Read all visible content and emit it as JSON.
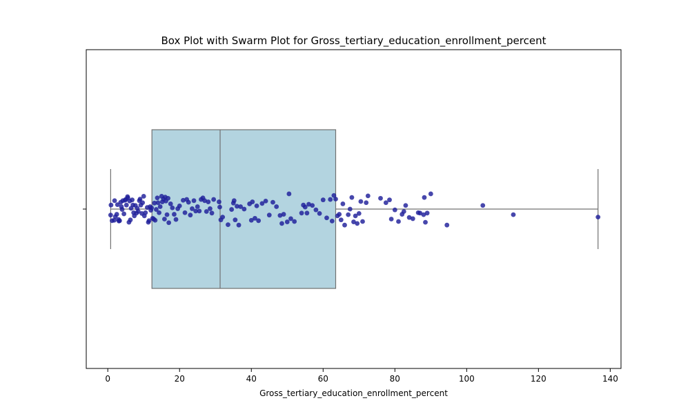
{
  "chart_data": {
    "type": "box",
    "title": "Box Plot with Swarm Plot for Gross_tertiary_education_enrollment_percent",
    "xlabel": "Gross_tertiary_education_enrollment_percent",
    "ylabel": "",
    "xlim": [
      -6.0,
      143.0
    ],
    "xticks": [
      0,
      20,
      40,
      60,
      80,
      100,
      120,
      140
    ],
    "grid": false,
    "box": {
      "whisker_low": 0.8,
      "q1": 12.3,
      "median": 31.3,
      "q3": 63.5,
      "whisker_high": 136.6
    },
    "style": {
      "box_fill": "#b3d4e0",
      "box_edge": "#707070",
      "point_color": "#1f1f9a"
    },
    "points": [
      {
        "x": 0.8,
        "y": -0.15
      },
      {
        "x": 0.9,
        "y": 0.1
      },
      {
        "x": 1.2,
        "y": -0.29
      },
      {
        "x": 1.8,
        "y": -0.28
      },
      {
        "x": 1.9,
        "y": 0.21
      },
      {
        "x": 2.1,
        "y": -0.19
      },
      {
        "x": 2.5,
        "y": -0.13
      },
      {
        "x": 2.7,
        "y": 0.11
      },
      {
        "x": 3.0,
        "y": -0.26
      },
      {
        "x": 3.1,
        "y": -0.3
      },
      {
        "x": 3.3,
        "y": -0.29
      },
      {
        "x": 3.6,
        "y": 0.17
      },
      {
        "x": 3.8,
        "y": 0.06
      },
      {
        "x": 4.0,
        "y": -0.01
      },
      {
        "x": 4.2,
        "y": 0.21
      },
      {
        "x": 4.5,
        "y": -0.12
      },
      {
        "x": 4.8,
        "y": 0.22
      },
      {
        "x": 5.0,
        "y": 0.24
      },
      {
        "x": 5.2,
        "y": 0.1
      },
      {
        "x": 5.5,
        "y": 0.31
      },
      {
        "x": 5.6,
        "y": 0.28
      },
      {
        "x": 5.9,
        "y": -0.33
      },
      {
        "x": 6.1,
        "y": 0.2
      },
      {
        "x": 6.3,
        "y": -0.27
      },
      {
        "x": 6.5,
        "y": 0.02
      },
      {
        "x": 6.8,
        "y": 0.23
      },
      {
        "x": 7.0,
        "y": 0.1
      },
      {
        "x": 7.2,
        "y": -0.09
      },
      {
        "x": 7.4,
        "y": -0.17
      },
      {
        "x": 7.7,
        "y": 0.09
      },
      {
        "x": 8.0,
        "y": -0.1
      },
      {
        "x": 8.2,
        "y": 0.02
      },
      {
        "x": 8.5,
        "y": -0.06
      },
      {
        "x": 8.8,
        "y": 0.21
      },
      {
        "x": 9.0,
        "y": 0.25
      },
      {
        "x": 9.2,
        "y": 0.1
      },
      {
        "x": 9.5,
        "y": -0.11
      },
      {
        "x": 9.7,
        "y": 0.16
      },
      {
        "x": 10.0,
        "y": 0.32
      },
      {
        "x": 10.2,
        "y": -0.17
      },
      {
        "x": 10.5,
        "y": -0.09
      },
      {
        "x": 11.0,
        "y": 0.04
      },
      {
        "x": 11.3,
        "y": -0.33
      },
      {
        "x": 11.5,
        "y": -0.29
      },
      {
        "x": 11.8,
        "y": 0.06
      },
      {
        "x": 12.0,
        "y": -0.03
      },
      {
        "x": 12.2,
        "y": 0.03
      },
      {
        "x": 12.5,
        "y": -0.23
      },
      {
        "x": 12.8,
        "y": -0.25
      },
      {
        "x": 13.0,
        "y": 0.15
      },
      {
        "x": 13.2,
        "y": -0.28
      },
      {
        "x": 13.5,
        "y": -0.01
      },
      {
        "x": 13.8,
        "y": 0.28
      },
      {
        "x": 14.0,
        "y": 0.16
      },
      {
        "x": 14.3,
        "y": -0.09
      },
      {
        "x": 14.6,
        "y": 0.06
      },
      {
        "x": 15.0,
        "y": 0.32
      },
      {
        "x": 15.2,
        "y": 0.18
      },
      {
        "x": 15.5,
        "y": 0.25
      },
      {
        "x": 15.8,
        "y": -0.25
      },
      {
        "x": 16.0,
        "y": 0.3
      },
      {
        "x": 16.2,
        "y": 0.2
      },
      {
        "x": 16.5,
        "y": -0.14
      },
      {
        "x": 16.8,
        "y": 0.27
      },
      {
        "x": 17.0,
        "y": -0.34
      },
      {
        "x": 17.5,
        "y": 0.13
      },
      {
        "x": 18.0,
        "y": 0.03
      },
      {
        "x": 18.5,
        "y": -0.13
      },
      {
        "x": 19.0,
        "y": -0.26
      },
      {
        "x": 19.5,
        "y": 0.01
      },
      {
        "x": 20.0,
        "y": 0.08
      },
      {
        "x": 21.0,
        "y": 0.22
      },
      {
        "x": 21.5,
        "y": -0.09
      },
      {
        "x": 22.0,
        "y": 0.24
      },
      {
        "x": 22.5,
        "y": 0.17
      },
      {
        "x": 23.0,
        "y": -0.15
      },
      {
        "x": 23.5,
        "y": 0.01
      },
      {
        "x": 24.0,
        "y": 0.21
      },
      {
        "x": 24.5,
        "y": -0.05
      },
      {
        "x": 25.0,
        "y": 0.06
      },
      {
        "x": 25.5,
        "y": -0.05
      },
      {
        "x": 26.0,
        "y": 0.24
      },
      {
        "x": 26.5,
        "y": 0.28
      },
      {
        "x": 27.0,
        "y": 0.21
      },
      {
        "x": 27.5,
        "y": -0.06
      },
      {
        "x": 28.0,
        "y": 0.18
      },
      {
        "x": 28.5,
        "y": 0.01
      },
      {
        "x": 29.0,
        "y": -0.1
      },
      {
        "x": 29.5,
        "y": 0.24
      },
      {
        "x": 31.0,
        "y": 0.18
      },
      {
        "x": 31.2,
        "y": 0.05
      },
      {
        "x": 31.5,
        "y": -0.27
      },
      {
        "x": 32.0,
        "y": -0.2
      },
      {
        "x": 33.5,
        "y": -0.39
      },
      {
        "x": 34.5,
        "y": -0.01
      },
      {
        "x": 35.0,
        "y": 0.15
      },
      {
        "x": 35.2,
        "y": 0.21
      },
      {
        "x": 35.5,
        "y": -0.27
      },
      {
        "x": 36.0,
        "y": 0.07
      },
      {
        "x": 36.5,
        "y": -0.4
      },
      {
        "x": 37.0,
        "y": 0.06
      },
      {
        "x": 38.0,
        "y": 0.0
      },
      {
        "x": 39.5,
        "y": 0.13
      },
      {
        "x": 40.0,
        "y": -0.28
      },
      {
        "x": 40.3,
        "y": 0.18
      },
      {
        "x": 41.0,
        "y": -0.23
      },
      {
        "x": 41.5,
        "y": 0.08
      },
      {
        "x": 42.0,
        "y": -0.29
      },
      {
        "x": 43.0,
        "y": 0.14
      },
      {
        "x": 44.0,
        "y": 0.2
      },
      {
        "x": 45.0,
        "y": -0.15
      },
      {
        "x": 46.0,
        "y": 0.17
      },
      {
        "x": 47.0,
        "y": 0.06
      },
      {
        "x": 48.0,
        "y": -0.16
      },
      {
        "x": 48.5,
        "y": -0.36
      },
      {
        "x": 49.0,
        "y": -0.13
      },
      {
        "x": 50.0,
        "y": -0.32
      },
      {
        "x": 50.5,
        "y": 0.38
      },
      {
        "x": 51.0,
        "y": -0.24
      },
      {
        "x": 52.0,
        "y": -0.31
      },
      {
        "x": 54.0,
        "y": -0.1
      },
      {
        "x": 54.5,
        "y": 0.1
      },
      {
        "x": 55.0,
        "y": 0.05
      },
      {
        "x": 55.5,
        "y": -0.1
      },
      {
        "x": 56.0,
        "y": 0.12
      },
      {
        "x": 57.0,
        "y": 0.09
      },
      {
        "x": 58.0,
        "y": -0.02
      },
      {
        "x": 59.0,
        "y": -0.11
      },
      {
        "x": 60.0,
        "y": 0.23
      },
      {
        "x": 61.0,
        "y": -0.22
      },
      {
        "x": 62.0,
        "y": 0.24
      },
      {
        "x": 62.5,
        "y": -0.3
      },
      {
        "x": 63.0,
        "y": 0.34
      },
      {
        "x": 63.5,
        "y": 0.25
      },
      {
        "x": 64.0,
        "y": -0.17
      },
      {
        "x": 64.5,
        "y": -0.13
      },
      {
        "x": 65.0,
        "y": -0.27
      },
      {
        "x": 65.5,
        "y": 0.13
      },
      {
        "x": 66.0,
        "y": -0.4
      },
      {
        "x": 67.0,
        "y": -0.14
      },
      {
        "x": 67.5,
        "y": 0.0
      },
      {
        "x": 68.0,
        "y": 0.29
      },
      {
        "x": 68.5,
        "y": -0.32
      },
      {
        "x": 69.0,
        "y": -0.17
      },
      {
        "x": 69.5,
        "y": -0.36
      },
      {
        "x": 70.0,
        "y": -0.11
      },
      {
        "x": 70.5,
        "y": 0.19
      },
      {
        "x": 71.0,
        "y": -0.31
      },
      {
        "x": 72.0,
        "y": 0.16
      },
      {
        "x": 72.5,
        "y": 0.33
      },
      {
        "x": 76.0,
        "y": 0.27
      },
      {
        "x": 77.5,
        "y": 0.16
      },
      {
        "x": 78.5,
        "y": 0.23
      },
      {
        "x": 79.0,
        "y": -0.25
      },
      {
        "x": 80.0,
        "y": -0.02
      },
      {
        "x": 81.0,
        "y": -0.31
      },
      {
        "x": 82.0,
        "y": -0.13
      },
      {
        "x": 82.5,
        "y": -0.06
      },
      {
        "x": 83.0,
        "y": 0.09
      },
      {
        "x": 84.0,
        "y": -0.21
      },
      {
        "x": 85.0,
        "y": -0.24
      },
      {
        "x": 86.5,
        "y": -0.09
      },
      {
        "x": 87.0,
        "y": -0.1
      },
      {
        "x": 88.0,
        "y": -0.14
      },
      {
        "x": 88.2,
        "y": 0.29
      },
      {
        "x": 88.5,
        "y": -0.33
      },
      {
        "x": 89.0,
        "y": -0.1
      },
      {
        "x": 90.0,
        "y": 0.38
      },
      {
        "x": 94.5,
        "y": -0.4
      },
      {
        "x": 104.5,
        "y": 0.09
      },
      {
        "x": 113.0,
        "y": -0.14
      },
      {
        "x": 136.6,
        "y": -0.2
      }
    ]
  }
}
